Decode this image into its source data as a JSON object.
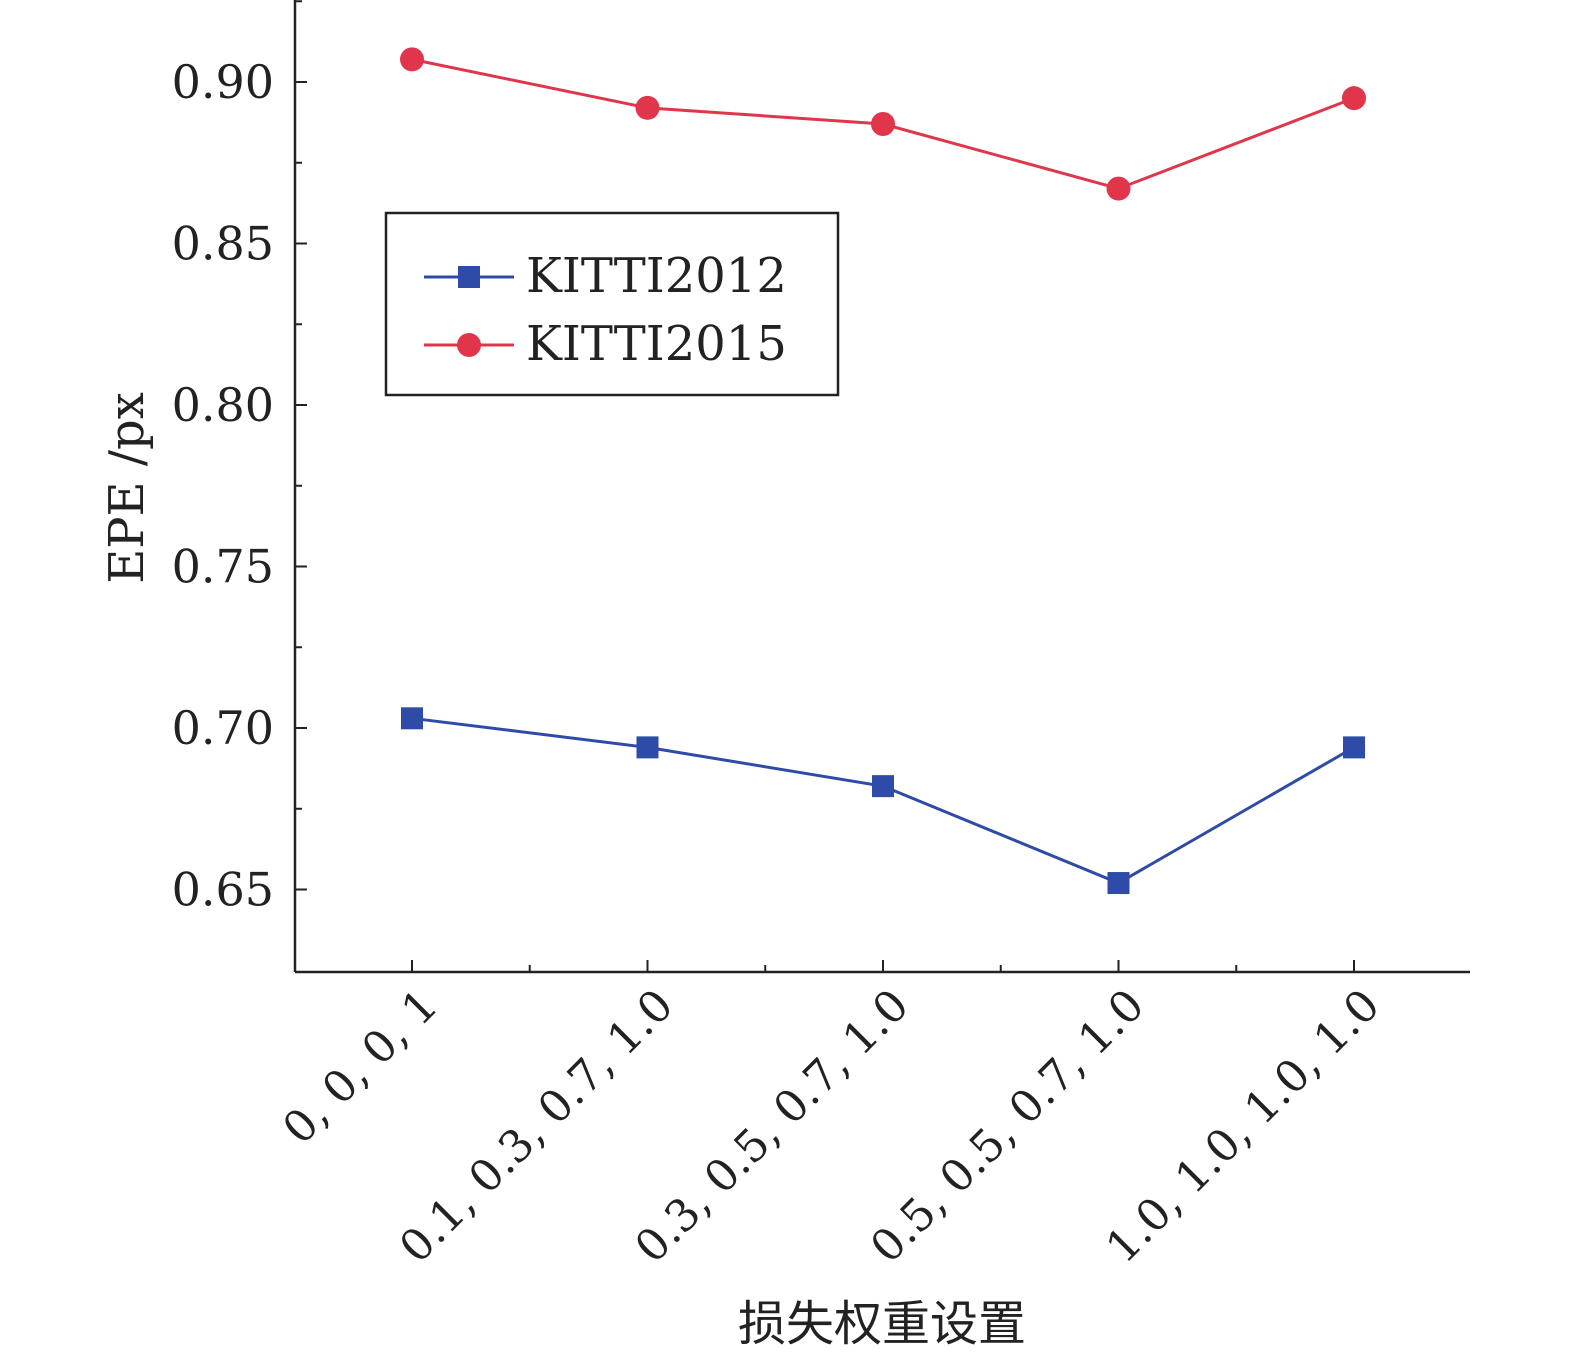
{
  "chart_data": {
    "type": "line",
    "title": "",
    "xlabel": "损失权重设置",
    "ylabel": "EPE /px",
    "categories": [
      "0, 0, 0, 1",
      "0.1, 0.3, 0.7, 1.0",
      "0.3, 0.5, 0.7, 1.0",
      "0.5, 0.5, 0.7, 1.0",
      "1.0, 1.0, 1.0, 1.0"
    ],
    "ylim": [
      0.625,
      0.925
    ],
    "yticks": [
      "0.65",
      "0.70",
      "0.75",
      "0.80",
      "0.85",
      "0.90"
    ],
    "grid": false,
    "legend_position": "upper-left",
    "series": [
      {
        "name": "KITTI2012",
        "values": [
          0.703,
          0.694,
          0.682,
          0.652,
          0.694
        ],
        "color": "#2e4ba8",
        "marker": "square"
      },
      {
        "name": "KITTI2015",
        "values": [
          0.907,
          0.892,
          0.887,
          0.867,
          0.895
        ],
        "color": "#e0354a",
        "marker": "circle"
      }
    ]
  }
}
